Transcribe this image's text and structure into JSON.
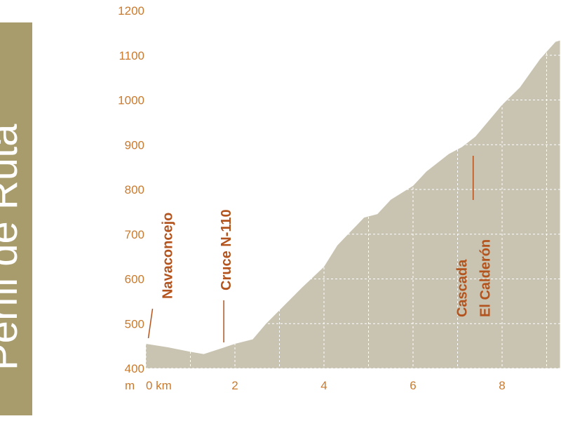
{
  "chart_data": {
    "type": "area",
    "title": "Perfil de Ruta",
    "ylabel": "m",
    "x": [
      0,
      0.5,
      1.0,
      1.3,
      1.7,
      2.0,
      2.4,
      2.7,
      3.0,
      3.5,
      4.0,
      4.3,
      4.6,
      4.9,
      5.2,
      5.5,
      6.0,
      6.3,
      6.8,
      7.1,
      7.4,
      8.0,
      8.4,
      8.85,
      9.2,
      9.3
    ],
    "values": [
      455,
      447,
      437,
      432,
      445,
      455,
      465,
      500,
      530,
      580,
      627,
      675,
      706,
      737,
      745,
      777,
      808,
      840,
      879,
      895,
      918,
      989,
      1028,
      1091,
      1130,
      1133
    ],
    "color": "#c9c3b1",
    "xlim": [
      0,
      9.3
    ],
    "ylim": [
      400,
      1200
    ],
    "xticks": [
      {
        "value": 0,
        "label": "0 km"
      },
      2,
      4,
      6,
      8
    ],
    "x_minor_ticks": [
      1,
      3,
      5,
      7,
      9
    ],
    "yticks": [
      400,
      500,
      600,
      700,
      800,
      900,
      1000,
      1100,
      1200
    ],
    "grid": true,
    "annotations": [
      {
        "text": [
          "Navaconcejo"
        ],
        "x": 0.15,
        "y": 470
      },
      {
        "text": [
          "Cruce N-110"
        ],
        "x": 1.75,
        "y": 460
      },
      {
        "text": [
          "Cascada",
          "El Calderón"
        ],
        "x": 7.35,
        "y": 895
      }
    ]
  }
}
